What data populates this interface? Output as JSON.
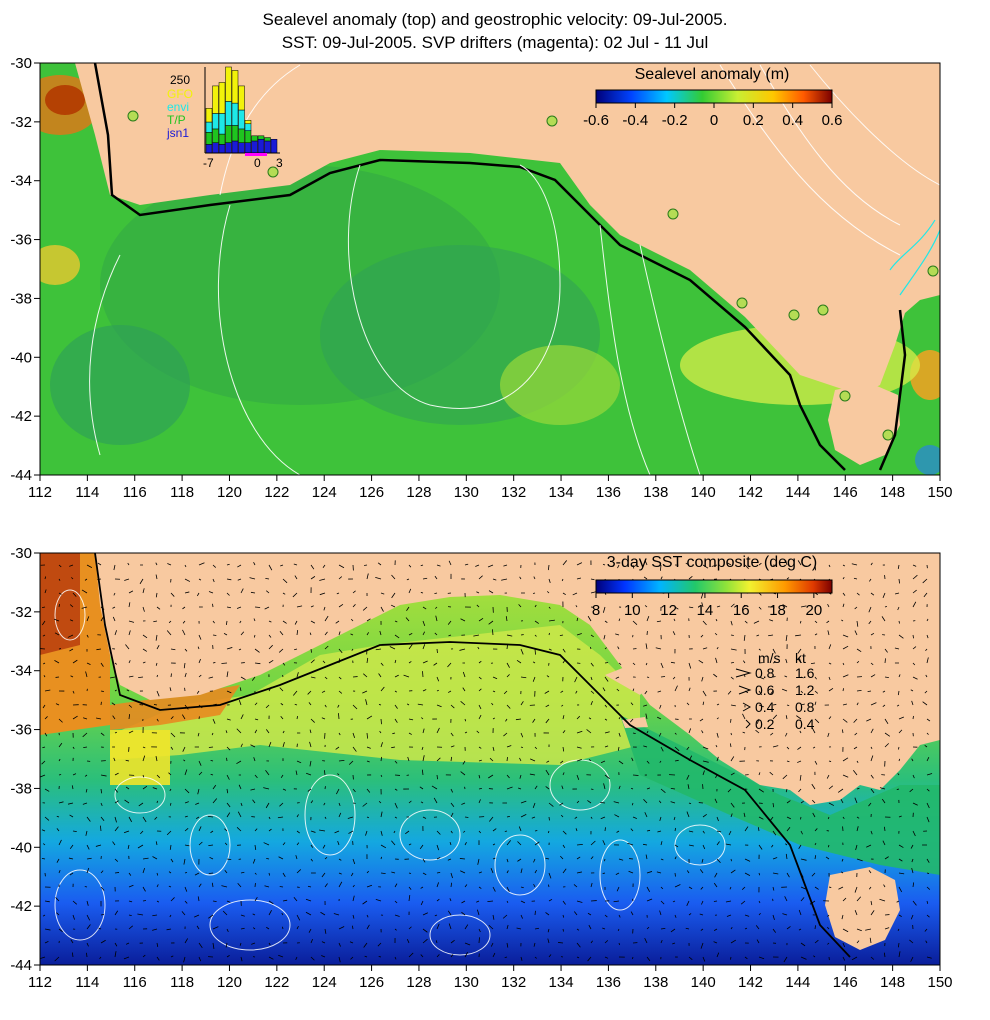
{
  "title": {
    "line1": "Sealevel anomaly (top) and geostrophic velocity: 09-Jul-2005.",
    "line2": "SST: 09-Jul-2005. SVP drifters (magenta): 02 Jul - 11 Jul"
  },
  "x_ticks": [
    "112",
    "114",
    "116",
    "118",
    "120",
    "122",
    "124",
    "126",
    "128",
    "130",
    "132",
    "134",
    "136",
    "138",
    "140",
    "142",
    "144",
    "146",
    "148",
    "150"
  ],
  "y_ticks": [
    "-30",
    "-32",
    "-34",
    "-36",
    "-38",
    "-40",
    "-42",
    "-44"
  ],
  "top_panel": {
    "colorbar_title": "Sealevel anomaly (m)",
    "colorbar_ticks": [
      "-0.6",
      "-0.4",
      "-0.2",
      "0",
      "0.2",
      "0.4",
      "0.6"
    ],
    "colorbar_range": [
      -0.6,
      0.6
    ],
    "inset": {
      "ymax_label": "250",
      "x_labels": [
        "-7",
        "0",
        "3"
      ],
      "legend": [
        {
          "label": "GFO",
          "color": "#f2f20a"
        },
        {
          "label": "envi",
          "color": "#1ee8e8"
        },
        {
          "label": "T/P",
          "color": "#1fc41f"
        },
        {
          "label": "jsn1",
          "color": "#1a1ad6"
        }
      ],
      "bars": [
        {
          "jsn1": 25,
          "tp": 35,
          "envi": 30,
          "gfo": 40
        },
        {
          "jsn1": 30,
          "tp": 40,
          "envi": 45,
          "gfo": 80
        },
        {
          "jsn1": 25,
          "tp": 30,
          "envi": 60,
          "gfo": 90
        },
        {
          "jsn1": 30,
          "tp": 50,
          "envi": 70,
          "gfo": 100
        },
        {
          "jsn1": 35,
          "tp": 45,
          "envi": 65,
          "gfo": 95
        },
        {
          "jsn1": 30,
          "tp": 40,
          "envi": 55,
          "gfo": 70
        },
        {
          "jsn1": 30,
          "tp": 35,
          "envi": 20,
          "gfo": 10
        },
        {
          "jsn1": 35,
          "tp": 15,
          "envi": 0,
          "gfo": 0
        },
        {
          "jsn1": 40,
          "tp": 10,
          "envi": 0,
          "gfo": 0
        },
        {
          "jsn1": 35,
          "tp": 10,
          "envi": 0,
          "gfo": 0
        },
        {
          "jsn1": 40,
          "tp": 0,
          "envi": 0,
          "gfo": 0
        }
      ]
    }
  },
  "bottom_panel": {
    "colorbar_title": "3-day SST composite (deg C)",
    "colorbar_ticks": [
      "8",
      "10",
      "12",
      "14",
      "16",
      "18",
      "20"
    ],
    "colorbar_range": [
      8,
      21
    ],
    "speed_legend": {
      "header_ms": "m/s",
      "header_kt": "kt",
      "rows": [
        {
          "ms": "0.8",
          "kt": "1.6"
        },
        {
          "ms": "0.6",
          "kt": "1.2"
        },
        {
          "ms": "0.4",
          "kt": "0.8"
        },
        {
          "ms": "0.2",
          "kt": "0.4"
        }
      ]
    }
  },
  "colors": {
    "land": "#f8c9a0",
    "coast": "#000000",
    "contour": "#ffffff"
  }
}
